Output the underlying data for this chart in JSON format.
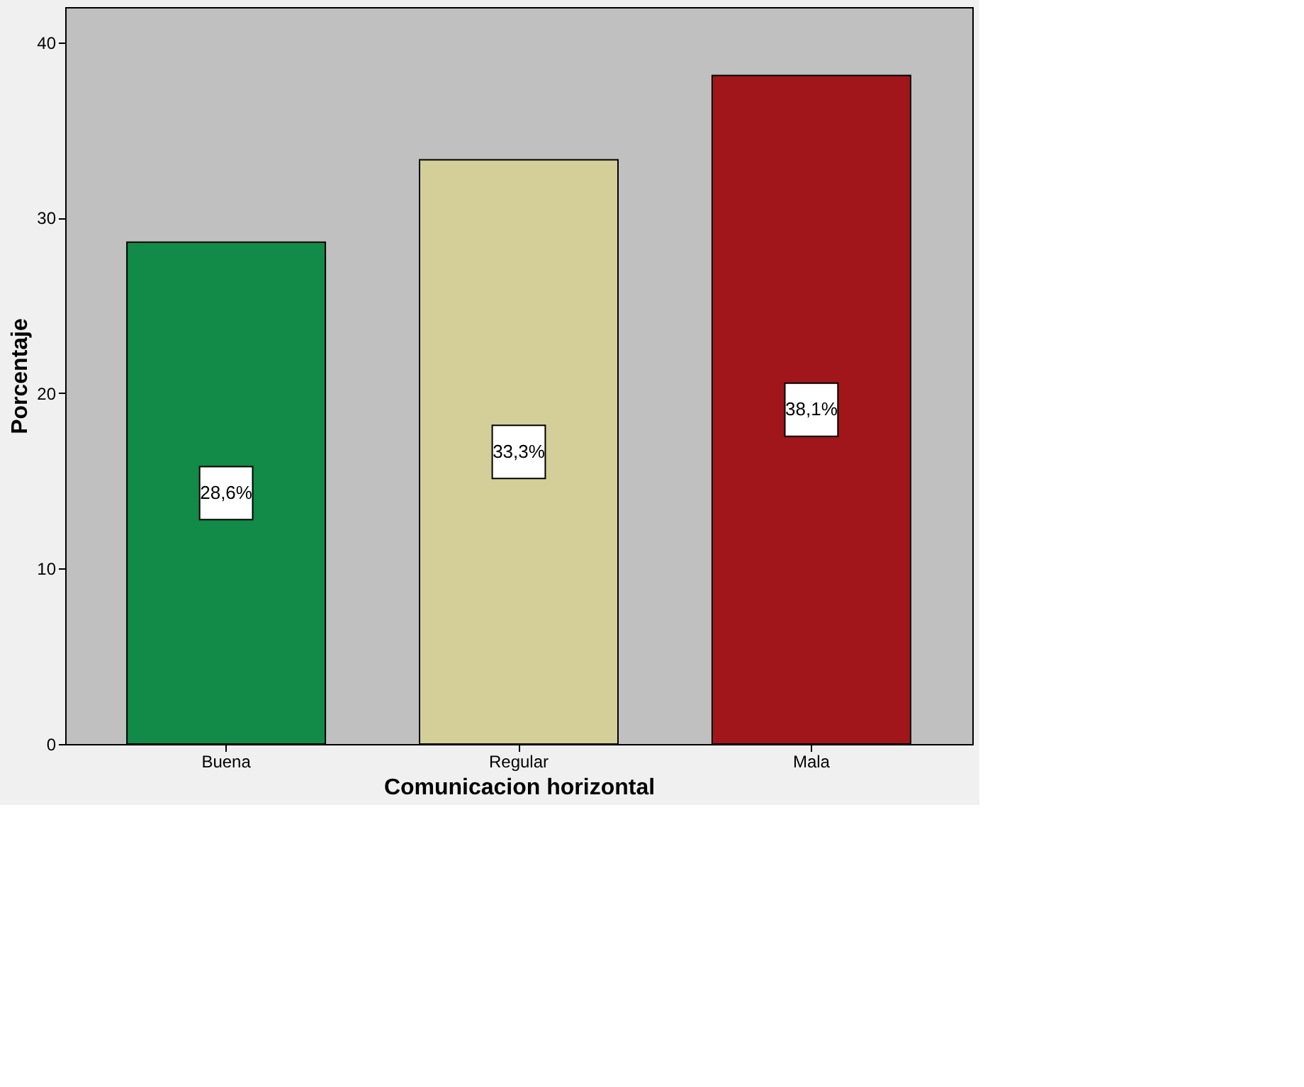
{
  "chart_data": {
    "type": "bar",
    "xlabel": "Comunicacion horizontal",
    "ylabel": "Porcentaje",
    "categories": [
      "Buena",
      "Regular",
      "Mala"
    ],
    "values": [
      28.6,
      33.3,
      38.1
    ],
    "colors": [
      "#128a48",
      "#d4cf99",
      "#a0161b"
    ],
    "value_labels": [
      "28,6%",
      "33,3%",
      "38,1%"
    ],
    "ylim": [
      0,
      42
    ],
    "yticks": [
      0,
      10,
      20,
      30,
      40
    ],
    "grid": false
  }
}
